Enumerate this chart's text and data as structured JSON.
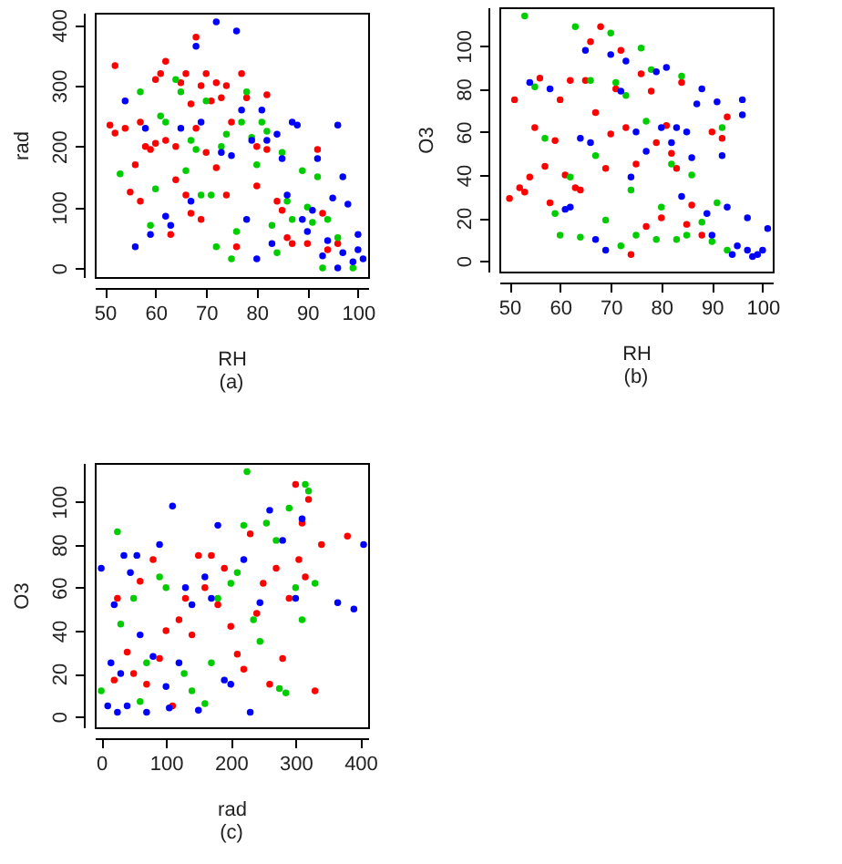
{
  "chart_data": [
    {
      "type": "scatter",
      "xlabel": "RH",
      "ylabel": "rad",
      "annotations": [
        "(a)"
      ],
      "marker": "circle",
      "xlim": [
        48,
        102
      ],
      "ylim": [
        -15,
        420
      ],
      "xticks": [
        50,
        60,
        70,
        80,
        90,
        100
      ],
      "yticks": [
        0,
        100,
        200,
        300,
        400
      ],
      "series": [
        {
          "color": "#ff0000",
          "x": [
            51,
            52,
            52,
            54,
            55,
            56,
            57,
            57,
            58,
            59,
            60,
            60,
            61,
            62,
            62,
            63,
            64,
            64,
            65,
            66,
            66,
            67,
            67,
            68,
            68,
            69,
            69,
            70,
            70,
            71,
            72,
            72,
            73,
            74,
            74,
            75,
            76,
            77,
            78,
            80,
            80,
            82,
            82,
            84,
            85,
            86,
            87,
            90,
            92,
            93,
            94,
            96
          ],
          "values": [
            235,
            222,
            333,
            230,
            125,
            170,
            110,
            240,
            200,
            195,
            205,
            310,
            320,
            340,
            210,
            55,
            145,
            200,
            305,
            120,
            320,
            90,
            270,
            380,
            230,
            300,
            80,
            320,
            190,
            275,
            165,
            305,
            280,
            120,
            300,
            240,
            35,
            320,
            280,
            200,
            135,
            285,
            195,
            110,
            95,
            50,
            40,
            40,
            195,
            90,
            30,
            40
          ]
        },
        {
          "color": "#00cd00",
          "x": [
            53,
            57,
            59,
            60,
            61,
            62,
            64,
            65,
            66,
            67,
            68,
            69,
            70,
            71,
            72,
            73,
            74,
            75,
            76,
            77,
            78,
            79,
            80,
            81,
            82,
            83,
            84,
            85,
            86,
            87,
            89,
            90,
            91,
            92,
            93,
            94,
            96,
            99
          ],
          "values": [
            155,
            290,
            70,
            130,
            250,
            240,
            310,
            290,
            160,
            210,
            195,
            120,
            275,
            120,
            35,
            200,
            220,
            15,
            60,
            240,
            290,
            215,
            170,
            240,
            225,
            70,
            25,
            190,
            110,
            80,
            160,
            100,
            75,
            150,
            0,
            80,
            50,
            0
          ]
        },
        {
          "color": "#0000ff",
          "x": [
            54,
            56,
            58,
            59,
            62,
            63,
            65,
            67,
            68,
            69,
            72,
            73,
            75,
            76,
            77,
            78,
            79,
            80,
            81,
            82,
            83,
            84,
            85,
            86,
            87,
            88,
            89,
            90,
            91,
            92,
            93,
            94,
            95,
            96,
            96,
            97,
            97,
            98,
            99,
            100,
            100,
            101
          ],
          "values": [
            275,
            35,
            230,
            55,
            85,
            70,
            230,
            110,
            365,
            240,
            405,
            190,
            185,
            390,
            260,
            80,
            210,
            15,
            260,
            210,
            40,
            220,
            180,
            120,
            240,
            235,
            80,
            60,
            95,
            180,
            20,
            45,
            115,
            0,
            235,
            150,
            25,
            105,
            10,
            55,
            30,
            15
          ]
        }
      ]
    },
    {
      "type": "scatter",
      "xlabel": "RH",
      "ylabel": "O3",
      "annotations": [
        "(b)"
      ],
      "marker": "circle",
      "xlim": [
        48,
        102
      ],
      "ylim": [
        -5,
        118
      ],
      "xticks": [
        50,
        60,
        70,
        80,
        90,
        100
      ],
      "yticks": [
        0,
        20,
        40,
        60,
        80,
        100
      ],
      "series": [
        {
          "color": "#ff0000",
          "x": [
            50,
            51,
            52,
            53,
            54,
            55,
            56,
            57,
            58,
            59,
            60,
            61,
            62,
            63,
            64,
            65,
            66,
            67,
            68,
            69,
            70,
            71,
            72,
            73,
            74,
            75,
            76,
            77,
            78,
            79,
            80,
            81,
            82,
            83,
            84,
            85,
            86,
            88,
            90,
            92,
            93
          ],
          "values": [
            29,
            75,
            34,
            32,
            39,
            62,
            85,
            44,
            27,
            56,
            75,
            40,
            84,
            34,
            33,
            84,
            102,
            69,
            109,
            43,
            59,
            80,
            98,
            62,
            3,
            45,
            87,
            16,
            79,
            55,
            20,
            63,
            50,
            43,
            83,
            17,
            26,
            12,
            60,
            57,
            67
          ]
        },
        {
          "color": "#00cd00",
          "x": [
            53,
            55,
            57,
            59,
            60,
            62,
            63,
            64,
            66,
            67,
            69,
            70,
            71,
            72,
            73,
            74,
            75,
            76,
            77,
            78,
            79,
            80,
            82,
            83,
            84,
            85,
            86,
            88,
            90,
            91,
            92,
            93
          ],
          "values": [
            114,
            81,
            57,
            22,
            12,
            39,
            109,
            11,
            84,
            49,
            19,
            106,
            83,
            7,
            77,
            33,
            12,
            99,
            65,
            89,
            10,
            25,
            45,
            10,
            86,
            12,
            40,
            18,
            9,
            27,
            62,
            5
          ]
        },
        {
          "color": "#0000ff",
          "x": [
            54,
            58,
            61,
            62,
            64,
            65,
            66,
            67,
            69,
            70,
            72,
            73,
            74,
            75,
            77,
            79,
            80,
            81,
            82,
            83,
            84,
            85,
            86,
            87,
            88,
            89,
            90,
            91,
            92,
            93,
            94,
            95,
            96,
            96,
            97,
            97,
            98,
            99,
            100,
            101
          ],
          "values": [
            83,
            80,
            24,
            25,
            57,
            98,
            55,
            10,
            5,
            96,
            79,
            93,
            39,
            60,
            51,
            88,
            62,
            90,
            55,
            62,
            30,
            60,
            48,
            73,
            80,
            22,
            12,
            74,
            49,
            25,
            3,
            7,
            68,
            75,
            5,
            20,
            2,
            3,
            5,
            15
          ]
        }
      ]
    },
    {
      "type": "scatter",
      "xlabel": "rad",
      "ylabel": "O3",
      "annotations": [
        "(c)"
      ],
      "marker": "circle",
      "xlim": [
        -10,
        412
      ],
      "ylim": [
        -5,
        118
      ],
      "xticks": [
        0,
        100,
        200,
        300,
        400
      ],
      "yticks": [
        0,
        20,
        40,
        60,
        80,
        100
      ],
      "series": [
        {
          "color": "#ff0000",
          "x": [
            20,
            25,
            40,
            50,
            60,
            70,
            80,
            90,
            100,
            110,
            120,
            130,
            140,
            150,
            160,
            170,
            180,
            190,
            200,
            210,
            220,
            230,
            240,
            250,
            260,
            270,
            280,
            290,
            300,
            305,
            310,
            315,
            320,
            330,
            340,
            380
          ],
          "values": [
            17,
            55,
            30,
            20,
            63,
            15,
            73,
            27,
            40,
            5,
            45,
            55,
            38,
            75,
            60,
            75,
            52,
            69,
            42,
            29,
            22,
            85,
            48,
            62,
            15,
            69,
            27,
            55,
            108,
            73,
            90,
            65,
            101,
            12,
            80,
            84
          ]
        },
        {
          "color": "#00cd00",
          "x": [
            0,
            25,
            30,
            50,
            60,
            70,
            90,
            100,
            128,
            140,
            160,
            170,
            180,
            200,
            210,
            220,
            225,
            235,
            245,
            255,
            270,
            275,
            285,
            290,
            300,
            310,
            315,
            320,
            330
          ],
          "values": [
            12,
            86,
            43,
            55,
            7,
            25,
            65,
            60,
            20,
            12,
            6,
            25,
            55,
            62,
            67,
            89,
            114,
            45,
            35,
            90,
            82,
            13,
            11,
            97,
            60,
            45,
            108,
            105,
            62
          ]
        },
        {
          "color": "#0000ff",
          "x": [
            0,
            10,
            15,
            20,
            25,
            30,
            35,
            40,
            45,
            55,
            60,
            70,
            80,
            90,
            100,
            105,
            110,
            120,
            130,
            140,
            150,
            160,
            170,
            180,
            190,
            200,
            220,
            230,
            245,
            260,
            280,
            300,
            310,
            365,
            390,
            405
          ],
          "values": [
            69,
            5,
            25,
            52,
            2,
            20,
            75,
            5,
            67,
            75,
            38,
            2,
            28,
            80,
            14,
            4,
            98,
            25,
            60,
            52,
            3,
            65,
            55,
            89,
            17,
            15,
            73,
            2,
            53,
            96,
            82,
            55,
            92,
            53,
            50,
            80
          ]
        }
      ]
    }
  ]
}
